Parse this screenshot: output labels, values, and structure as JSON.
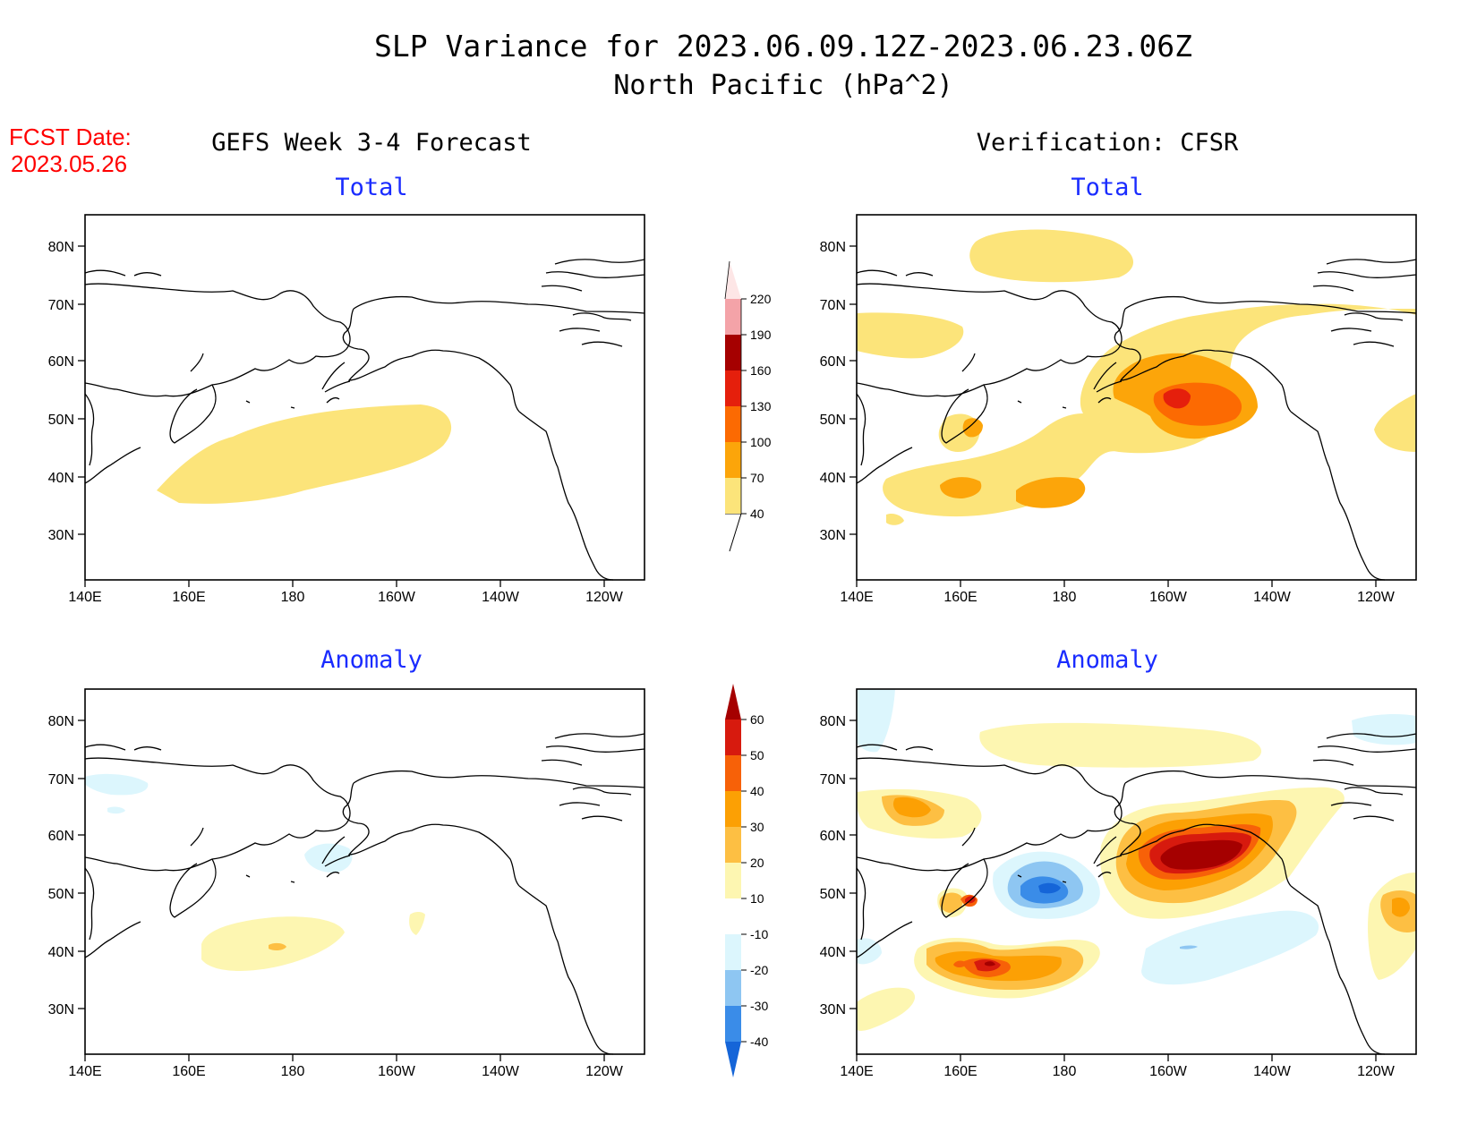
{
  "header": {
    "title_line1": "SLP Variance for 2023.06.09.12Z-2023.06.23.06Z",
    "title_line2": "North Pacific (hPa^2)",
    "fcst_label": "FCST Date:",
    "fcst_date": "2023.05.26"
  },
  "columns": {
    "left": "GEFS Week 3-4 Forecast",
    "right": "Verification: CFSR"
  },
  "panels": {
    "total_label": "Total",
    "anomaly_label": "Anomaly"
  },
  "axes": {
    "x_ticks": [
      "140E",
      "160E",
      "180",
      "160W",
      "140W",
      "120W"
    ],
    "y_ticks": [
      "80N",
      "70N",
      "60N",
      "50N",
      "40N",
      "30N"
    ]
  },
  "colorbar_total": {
    "levels": [
      "40",
      "70",
      "100",
      "130",
      "160",
      "190",
      "220"
    ],
    "colors": [
      "#fce47a",
      "#fca50a",
      "#fc6a02",
      "#e51f0c",
      "#a50000",
      "#f4a3a8",
      "#fde6e6"
    ]
  },
  "colorbar_anomaly": {
    "levels": [
      "-40",
      "-30",
      "-20",
      "-10",
      "10",
      "20",
      "30",
      "40",
      "50",
      "60"
    ],
    "colors": [
      "#1565d8",
      "#3a8ce8",
      "#8ec6f2",
      "#dcf6fd",
      "#ffffff",
      "#fdf6b1",
      "#fdbf43",
      "#fca004",
      "#f76108",
      "#d71a0e",
      "#a50000"
    ]
  }
}
